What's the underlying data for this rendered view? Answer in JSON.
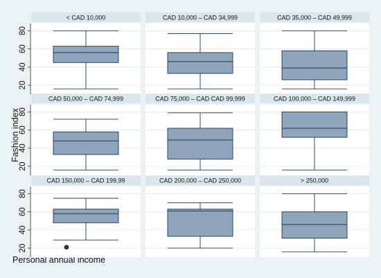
{
  "chart_data": {
    "type": "box",
    "ylabel": "Fashion index",
    "xlabel": "Personal annual income",
    "ylim": [
      10,
      88
    ],
    "yticks": [
      20,
      40,
      60,
      80
    ],
    "grid": true,
    "colors": {
      "box_fill": "#8ea5bc",
      "box_stroke": "#1f3654",
      "strip": "#d9e6eb",
      "background": "#eaf2f3"
    },
    "panels": [
      {
        "label": "< CAD 10,000",
        "min": 16,
        "q1": 45,
        "median": 56,
        "q3": 63,
        "max": 80,
        "outliers": []
      },
      {
        "label": "CAD 10,000 – CAD 34,999",
        "min": 16,
        "q1": 33,
        "median": 46,
        "q3": 56,
        "max": 77,
        "outliers": []
      },
      {
        "label": "CAD 35,000 – CAD 49,999",
        "min": 16,
        "q1": 26,
        "median": 39,
        "q3": 58,
        "max": 80,
        "outliers": []
      },
      {
        "label": "CAD 50,000 – CAD 74,999",
        "min": 16,
        "q1": 33,
        "median": 48,
        "q3": 58,
        "max": 72,
        "outliers": []
      },
      {
        "label": "CAD 75,000 – CAD CAD 99,999",
        "min": 16,
        "q1": 28,
        "median": 49,
        "q3": 62,
        "max": 79,
        "outliers": []
      },
      {
        "label": "CAD 100,000 – CAD 149,999",
        "min": 16,
        "q1": 52,
        "median": 62,
        "q3": 80,
        "max": 80,
        "outliers": []
      },
      {
        "label": "CAD 150,000 – CAD 199,99",
        "min": 29,
        "q1": 48,
        "median": 58,
        "q3": 63,
        "max": 75,
        "outliers": [
          21
        ]
      },
      {
        "label": "CAD 200,000 – CAD 250,000",
        "min": 20,
        "q1": 33,
        "median": 61,
        "q3": 63,
        "max": 70,
        "outliers": []
      },
      {
        "label": "> 250,000",
        "min": 16,
        "q1": 31,
        "median": 46,
        "q3": 60,
        "max": 80,
        "outliers": []
      }
    ]
  }
}
